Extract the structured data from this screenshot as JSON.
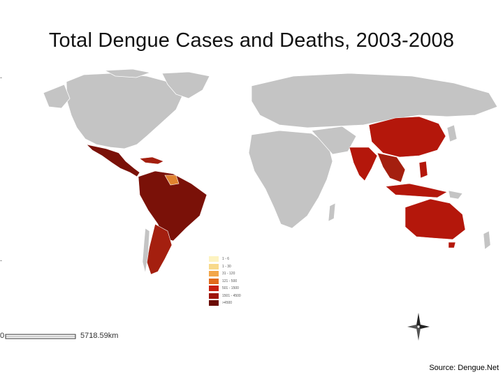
{
  "title": "Total Dengue Cases and Deaths, 2003-2008",
  "colors": {
    "no_data": "#c4c4c4",
    "borders": "#ffffff",
    "americas_high": "#7a1108",
    "americas_mid": "#a41f0f",
    "asia_high": "#b4170b",
    "guiana_orange": "#e0822f"
  },
  "legend": {
    "items": [
      {
        "label": "1 - 6",
        "color": "#fdf3c0"
      },
      {
        "label": "1 - 30",
        "color": "#f8d98a"
      },
      {
        "label": "31 - 120",
        "color": "#f2a64a"
      },
      {
        "label": "121 - 500",
        "color": "#e26b1c"
      },
      {
        "label": "501 - 1500",
        "color": "#c8200f"
      },
      {
        "label": "1501 - 4500",
        "color": "#9e140a"
      },
      {
        "label": ">4500",
        "color": "#6b0d05"
      }
    ]
  },
  "scale": {
    "start": "0",
    "end": "5718.59km"
  },
  "source": "Source: Dengue.Net",
  "compass": {
    "icon": "compass-rose-icon"
  }
}
